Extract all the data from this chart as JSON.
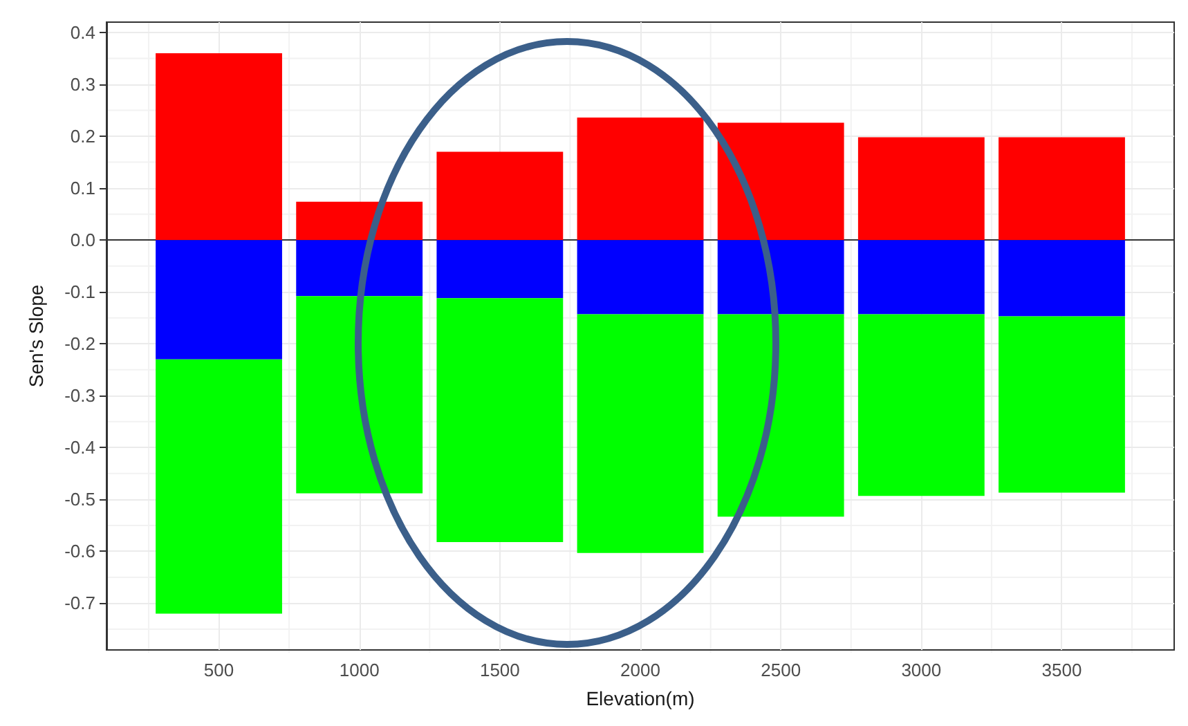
{
  "chart_data": {
    "type": "bar",
    "stacked": true,
    "xlabel": "Elevation(m)",
    "ylabel": "Sen's Slope",
    "x": [
      500,
      1000,
      1500,
      2000,
      2500,
      3000,
      3500
    ],
    "series": [
      {
        "color": "#ff0000",
        "values": [
          0.36,
          0.074,
          0.17,
          0.236,
          0.226,
          0.198,
          0.198
        ]
      },
      {
        "color": "#0000ff",
        "values": [
          -0.23,
          -0.108,
          -0.112,
          -0.143,
          -0.143,
          -0.143,
          -0.147
        ]
      },
      {
        "color": "#00ff00",
        "values": [
          -0.49,
          -0.38,
          -0.47,
          -0.46,
          -0.39,
          -0.35,
          -0.34
        ]
      }
    ],
    "xlim": [
      100,
      3900
    ],
    "xticks": [
      500,
      1000,
      1500,
      2000,
      2500,
      3000,
      3500
    ],
    "ylim": [
      -0.79,
      0.42
    ],
    "yticks": [
      -0.7,
      -0.6,
      -0.5,
      -0.4,
      -0.3,
      -0.2,
      -0.1,
      {
        "value": 0,
        "label": "0.0"
      },
      0.1,
      0.2,
      0.3,
      0.4
    ],
    "grid": true
  }
}
